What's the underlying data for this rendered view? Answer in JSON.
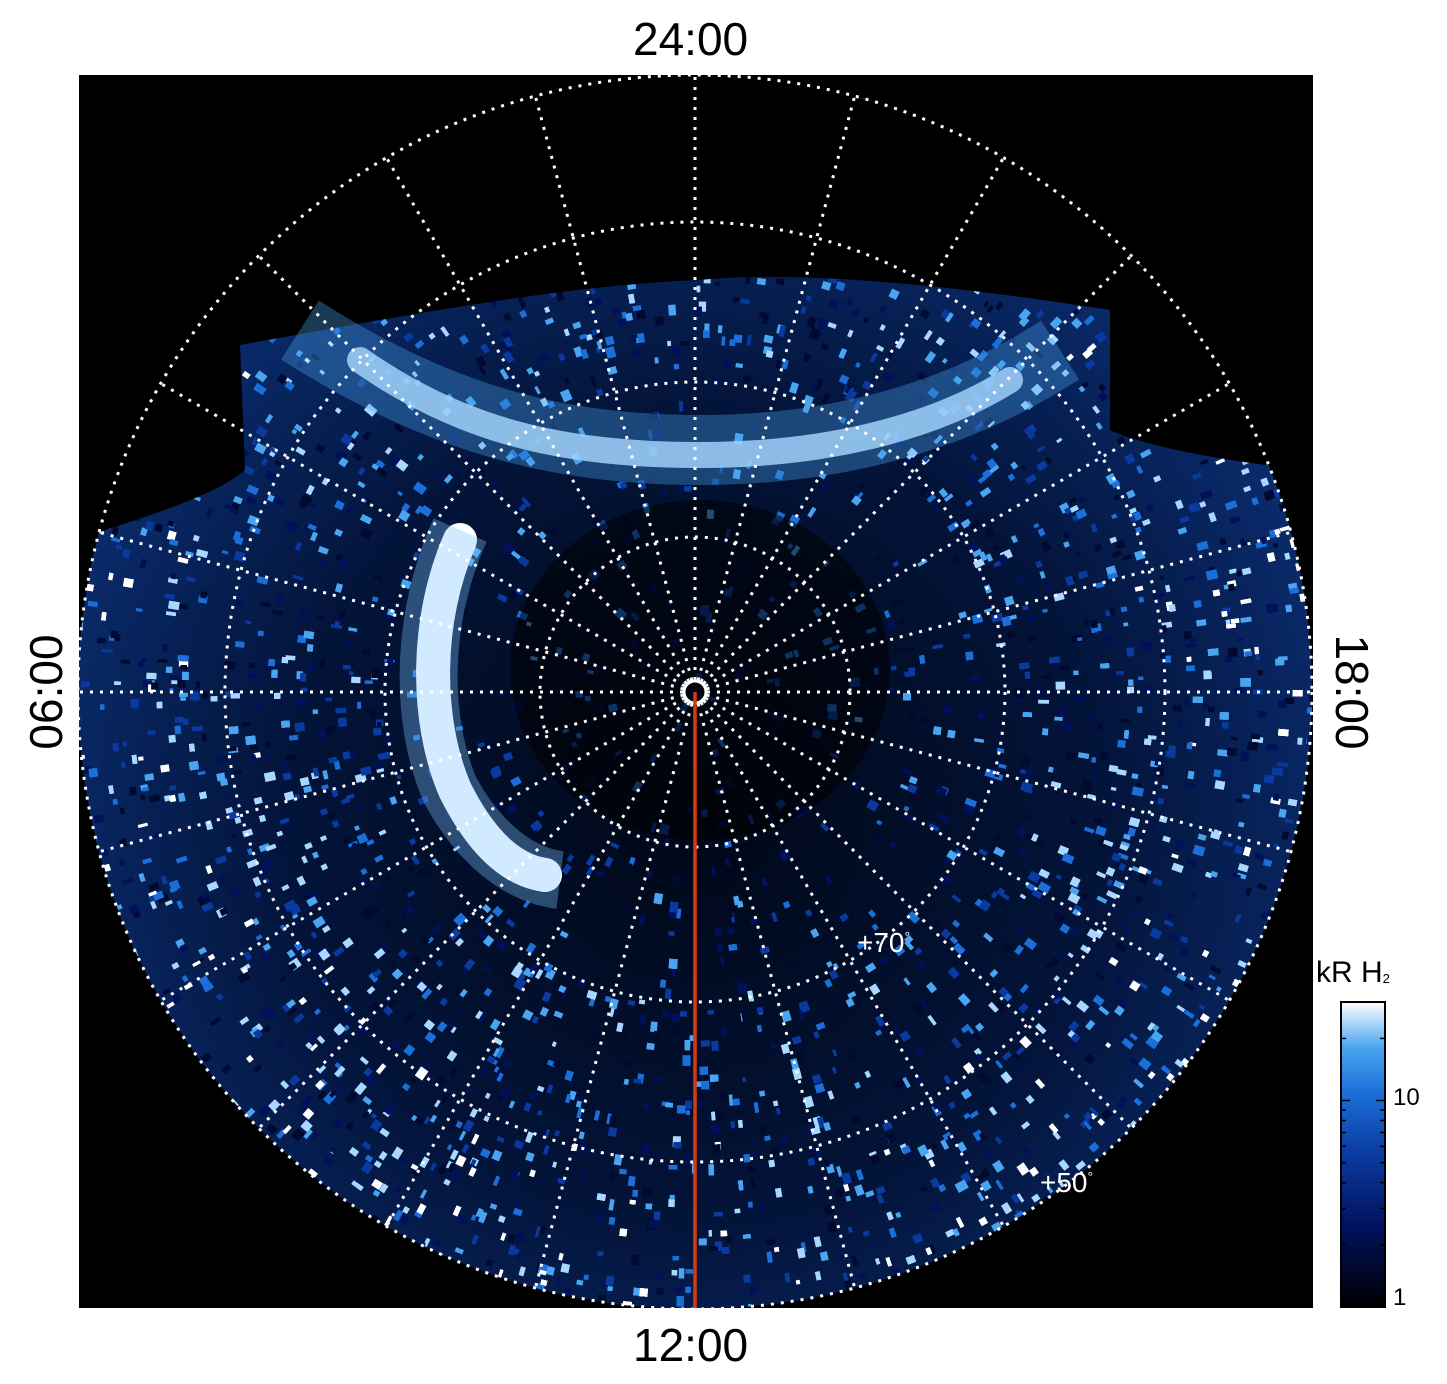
{
  "figure": {
    "local_time_labels": {
      "top": "24:00",
      "bottom": "12:00",
      "left": "06:00",
      "right": "18:00"
    },
    "latitude_labels": [
      {
        "value": "+70",
        "unit": "°"
      },
      {
        "value": "+50",
        "unit": "°"
      }
    ],
    "colorbar": {
      "title_main": "kR H",
      "title_sub": "2",
      "scale": "log",
      "range": [
        1,
        30
      ],
      "tick_labels": [
        "10",
        "1"
      ]
    },
    "colors": {
      "background": "#000000",
      "grid": "#ffffff",
      "meridian_line": "#d83a10",
      "colormap": [
        "#000000",
        "#000a30",
        "#00105a",
        "#0a3aa0",
        "#1a6fd8",
        "#4aa5f0",
        "#a8d8ff",
        "#ffffff"
      ]
    }
  }
}
